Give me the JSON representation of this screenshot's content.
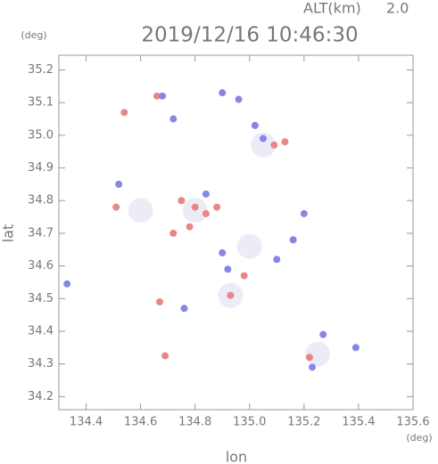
{
  "chart_data": {
    "type": "scatter",
    "title": "2019/12/16 10:46:30",
    "altitude_label": "ALT(km)",
    "altitude": "2.0",
    "x_label": "lon",
    "y_label": "lat",
    "x_unit": "(deg)",
    "y_unit": "(deg)",
    "xlim": [
      134.3,
      135.6
    ],
    "ylim": [
      34.16,
      35.245
    ],
    "xticks": [
      134.4,
      134.6,
      134.8,
      {
        "value": 135,
        "label": "135.0"
      },
      135.2,
      135.4,
      135.6
    ],
    "yticks": [
      34.2,
      34.3,
      34.4,
      34.5,
      34.6,
      34.7,
      34.8,
      34.9,
      {
        "value": 35,
        "label": "35.0"
      },
      35.1,
      35.2
    ],
    "series": [
      {
        "color": "#ececf6",
        "x": [
          134.93,
          135.25,
          134.8,
          135.05,
          134.6,
          135.0
        ],
        "y": [
          34.51,
          34.33,
          34.77,
          34.97,
          34.77,
          34.66
        ]
      },
      {
        "color": "#e98686",
        "x": [
          134.54,
          134.69,
          134.66,
          134.8,
          134.75,
          134.84,
          134.78,
          134.93,
          135.09,
          135.22,
          134.88,
          134.98,
          134.67,
          135.13,
          134.51,
          134.72
        ],
        "y": [
          35.07,
          34.325,
          35.12,
          34.78,
          34.8,
          34.76,
          34.72,
          34.51,
          34.97,
          34.32,
          34.78,
          34.57,
          34.49,
          34.98,
          34.78,
          34.7
        ]
      },
      {
        "color": "#8686e9",
        "x": [
          134.33,
          134.9,
          134.96,
          134.72,
          134.68,
          135.27,
          135.23,
          135.39,
          134.84,
          134.9,
          134.76,
          135.02,
          135.05,
          134.92,
          135.2,
          135.16,
          134.52,
          135.1
        ],
        "y": [
          34.545,
          35.13,
          35.11,
          35.05,
          35.12,
          34.39,
          34.29,
          34.35,
          34.82,
          34.64,
          34.47,
          35.03,
          34.99,
          34.59,
          34.76,
          34.68,
          34.85,
          34.62
        ]
      }
    ]
  }
}
